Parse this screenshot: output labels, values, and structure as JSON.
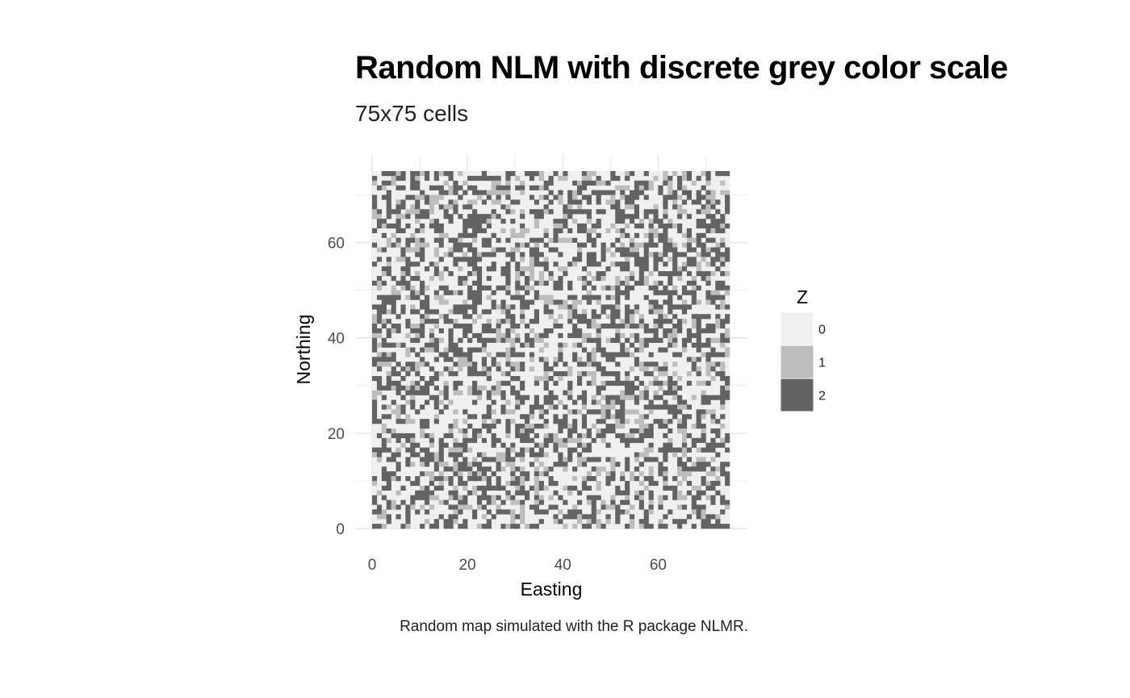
{
  "chart_data": {
    "type": "heatmap",
    "title": "Random NLM with discrete grey color scale",
    "subtitle": "75x75 cells",
    "caption": "Random map simulated with the R package NLMR.",
    "xlabel": "Easting",
    "ylabel": "Northing",
    "grid": true,
    "xlim": [
      0,
      75
    ],
    "ylim": [
      0,
      75
    ],
    "x_ticks": [
      0,
      20,
      40,
      60
    ],
    "y_ticks": [
      0,
      20,
      40,
      60
    ],
    "ncol": 75,
    "nrow": 75,
    "categories": [
      "0",
      "1",
      "2"
    ],
    "legend": {
      "title": "Z",
      "placement": "right",
      "entries": [
        {
          "label": "0",
          "color": "#f0f0f0"
        },
        {
          "label": "1",
          "color": "#bdbdbd"
        },
        {
          "label": "2",
          "color": "#636363"
        }
      ]
    },
    "cell_value_proportions": {
      "0": 0.5,
      "1": 0.15,
      "2": 0.35
    }
  }
}
